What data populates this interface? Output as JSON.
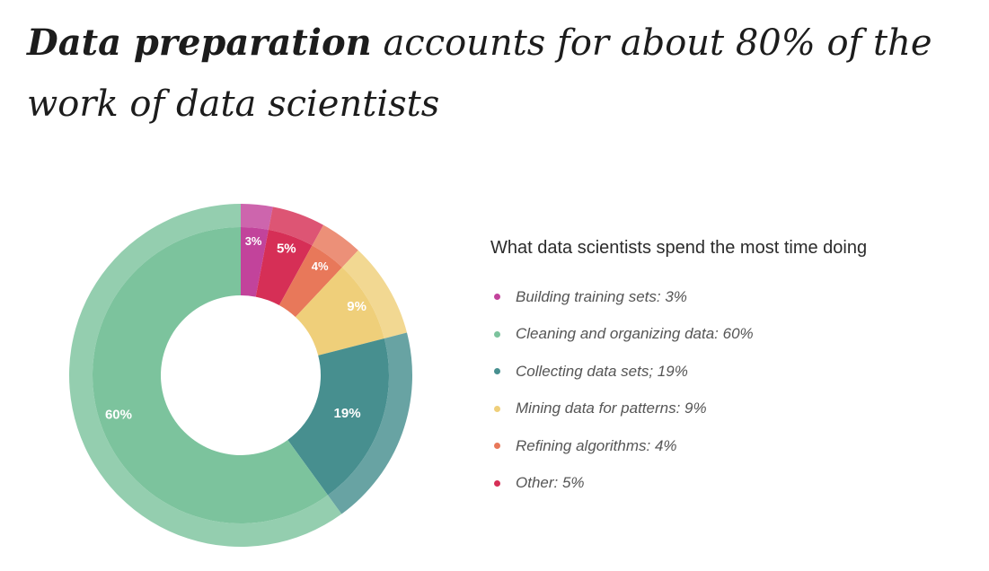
{
  "headline": {
    "bold": "Data preparation",
    "rest": " accounts for about 80% of the work of data scientists"
  },
  "chart_data": {
    "type": "pie",
    "style": "donut",
    "title": "What data scientists spend the most time doing",
    "start": "top",
    "direction": "clockwise",
    "slices": [
      {
        "label": "Building training sets: 3%",
        "value": 3,
        "display": "3%",
        "color": "#c2439b"
      },
      {
        "label": "Other: 5%",
        "value": 5,
        "display": "5%",
        "color": "#d62f56"
      },
      {
        "label": "Refining algorithms: 4%",
        "value": 4,
        "display": "4%",
        "color": "#e8785a"
      },
      {
        "label": "Mining data for patterns: 9%",
        "value": 9,
        "display": "9%",
        "color": "#efcf7a"
      },
      {
        "label": "Collecting data sets; 19%",
        "value": 19,
        "display": "19%",
        "color": "#478f8f"
      },
      {
        "label": "Cleaning and organizing data: 60%",
        "value": 60,
        "display": "60%",
        "color": "#7cc39d"
      }
    ],
    "legend_order": [
      0,
      5,
      4,
      3,
      2,
      1
    ],
    "legend_placement": "right"
  }
}
